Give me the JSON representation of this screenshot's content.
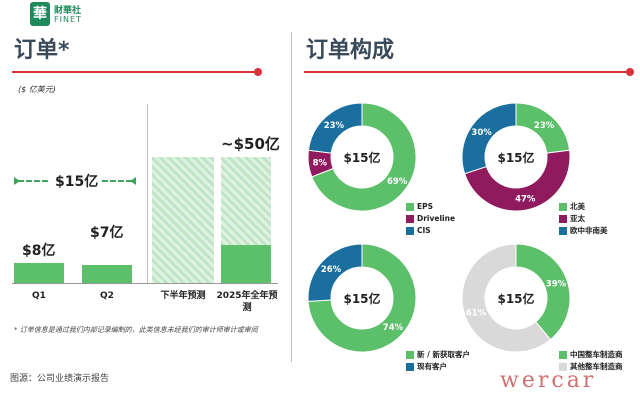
{
  "brand": {
    "logo_char": "華",
    "name_cn": "财華社",
    "name_en": "FINET"
  },
  "left_panel": {
    "title": "订单*",
    "unit": "($ 亿美元)",
    "bracket_label": "$15亿",
    "forecast_label": "~$50亿",
    "footnote": "* 订单信息是通过我们内部记录编制的，此类信息未经我们的审计师审计或审阅"
  },
  "right_panel": {
    "title": "订单构成"
  },
  "source": "图源：公司业绩演示报告",
  "watermark": "wercar",
  "colors": {
    "green": "#5cbf6a",
    "purple": "#8f1a5e",
    "blue": "#1a6f9e",
    "gray": "#d9d9d9",
    "red": "#d9323b"
  },
  "chart_data": [
    {
      "type": "bar",
      "categories": [
        "Q1",
        "Q2",
        "下半年预测",
        "2025年全年预测"
      ],
      "values": [
        8,
        7,
        null,
        50
      ],
      "labels": [
        "$8亿",
        "$7亿",
        "",
        ""
      ],
      "ylim": [
        0,
        55
      ]
    },
    {
      "type": "pie",
      "center_label": "$15亿",
      "slices": [
        {
          "name": "EPS",
          "value": 69,
          "label": "69%",
          "color": "#5cbf6a"
        },
        {
          "name": "Driveline",
          "value": 8,
          "label": "8%",
          "color": "#8f1a5e"
        },
        {
          "name": "CIS",
          "value": 23,
          "label": "23%",
          "color": "#1a6f9e"
        }
      ]
    },
    {
      "type": "pie",
      "center_label": "$15亿",
      "slices": [
        {
          "name": "北美",
          "value": 23,
          "label": "23%",
          "color": "#5cbf6a"
        },
        {
          "name": "亚太",
          "value": 47,
          "label": "47%",
          "color": "#8f1a5e"
        },
        {
          "name": "欧中非南美",
          "value": 30,
          "label": "30%",
          "color": "#1a6f9e"
        }
      ]
    },
    {
      "type": "pie",
      "center_label": "$15亿",
      "slices": [
        {
          "name": "新 / 新获取客户",
          "value": 74,
          "label": "74%",
          "color": "#5cbf6a"
        },
        {
          "name": "现有客户",
          "value": 26,
          "label": "26%",
          "color": "#1a6f9e"
        }
      ]
    },
    {
      "type": "pie",
      "center_label": "$15亿",
      "slices": [
        {
          "name": "中国整车制造商",
          "value": 39,
          "label": "39%",
          "color": "#5cbf6a"
        },
        {
          "name": "其他整车制造商",
          "value": 61,
          "label": "61%",
          "color": "#d9d9d9"
        }
      ]
    }
  ]
}
